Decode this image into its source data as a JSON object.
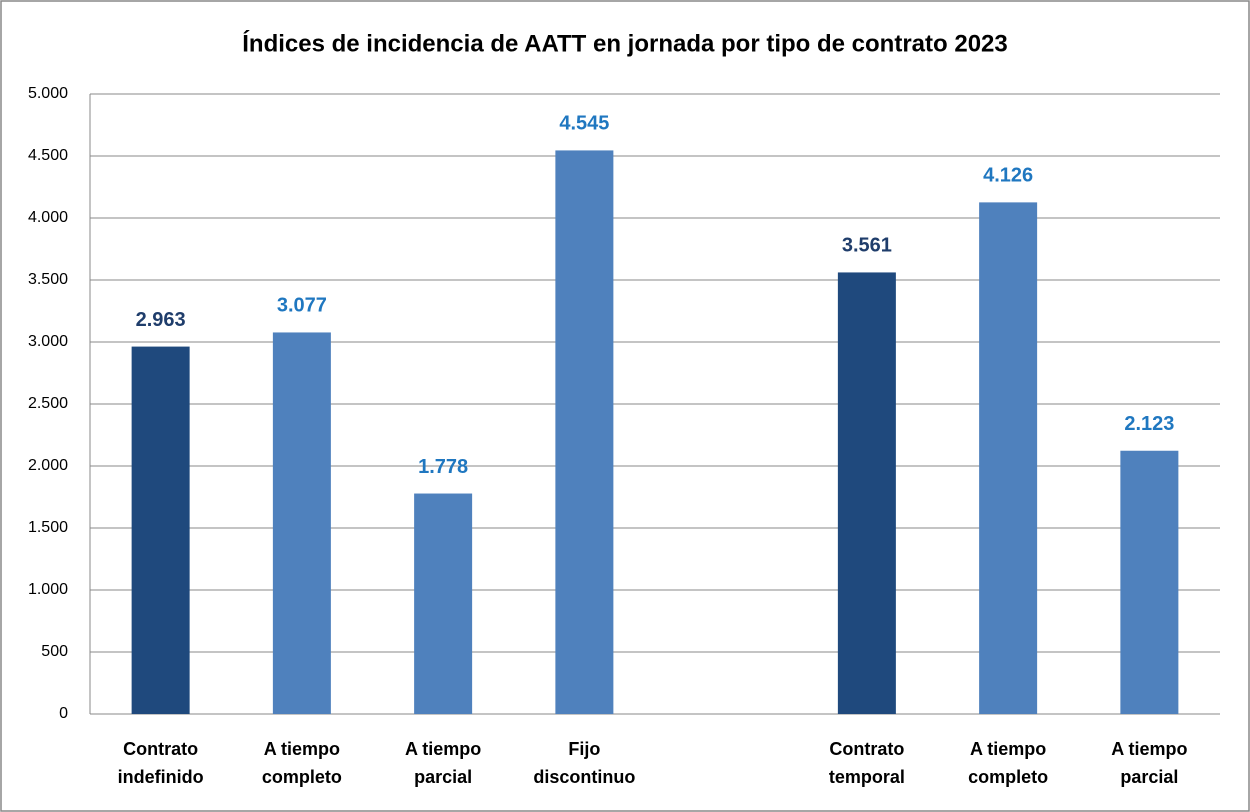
{
  "chart_data": {
    "type": "bar",
    "title": "Índices de incidencia de AATT en jornada por tipo de contrato 2023",
    "categories": [
      [
        "Contrato",
        "indefinido"
      ],
      [
        "A tiempo",
        "completo"
      ],
      [
        "A tiempo",
        "parcial"
      ],
      [
        "Fijo",
        "discontinuo"
      ],
      null,
      [
        "Contrato",
        "temporal"
      ],
      [
        "A tiempo",
        "completo"
      ],
      [
        "A tiempo",
        "parcial"
      ]
    ],
    "values": [
      2963,
      3077,
      1778,
      4545,
      null,
      3561,
      4126,
      2123
    ],
    "value_labels": [
      "2.963",
      "3.077",
      "1.778",
      "4.545",
      null,
      "3.561",
      "4.126",
      "2.123"
    ],
    "colors": [
      "#1f497d",
      "#4f81bd",
      "#4f81bd",
      "#4f81bd",
      null,
      "#1f497d",
      "#4f81bd",
      "#4f81bd"
    ],
    "value_label_colors": [
      "#1f3d6b",
      "#1f77c0",
      "#1f77c0",
      "#1f77c0",
      null,
      "#1f3d6b",
      "#1f77c0",
      "#1f77c0"
    ],
    "ylim": [
      0,
      5000
    ],
    "yticks": [
      0,
      500,
      {
        "value": 1000,
        "label": "1.000"
      },
      {
        "value": 1500,
        "label": "1.500"
      },
      {
        "value": 2000,
        "label": "2.000"
      },
      {
        "value": 2500,
        "label": "2.500"
      },
      {
        "value": 3000,
        "label": "3.000"
      },
      {
        "value": 3500,
        "label": "3.500"
      },
      {
        "value": 4000,
        "label": "4.000"
      },
      {
        "value": 4500,
        "label": "4.500"
      },
      {
        "value": 5000,
        "label": "5.000"
      }
    ],
    "grid": true
  }
}
